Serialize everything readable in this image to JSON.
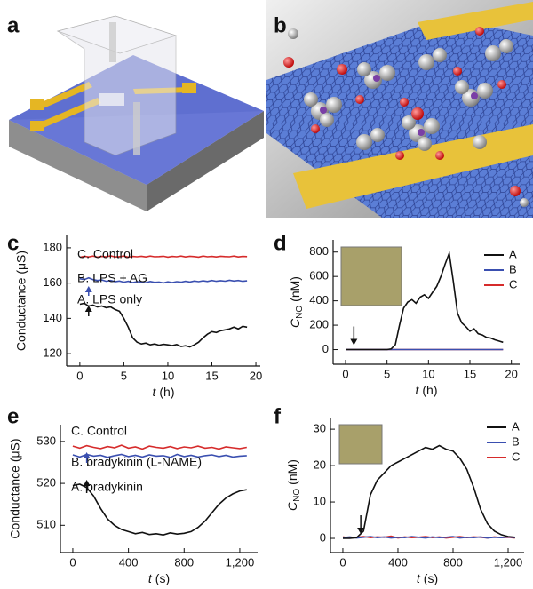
{
  "illustrations": [
    {
      "panel_label": "a"
    },
    {
      "panel_label": "b"
    }
  ],
  "chart_data": [
    {
      "type": "line",
      "panel_label": "c",
      "ylabel": "Conductance (μS)",
      "xlabel_parts": [
        "t",
        "(h)"
      ],
      "x": [
        0,
        0.5,
        1,
        1.5,
        2,
        2.5,
        3,
        3.5,
        4,
        4.5,
        5,
        5.5,
        6,
        6.5,
        7,
        7.5,
        8,
        8.5,
        9,
        9.5,
        10,
        10.5,
        11,
        11.5,
        12,
        12.5,
        13,
        13.5,
        14,
        14.5,
        15,
        15.5,
        16,
        16.5,
        17,
        17.5,
        18,
        18.5,
        19
      ],
      "series": [
        {
          "name": "A. LPS only",
          "color": "#111111",
          "values": [
            148,
            148.5,
            147,
            147.5,
            146.5,
            147,
            146,
            146.5,
            145,
            144,
            140,
            135,
            129,
            126.5,
            125.5,
            126,
            125,
            125.5,
            124.8,
            125.3,
            125,
            124.6,
            125.2,
            124,
            124.5,
            123.8,
            125,
            126.5,
            129,
            131,
            132.5,
            132,
            133,
            133.5,
            134,
            135,
            134,
            135.5,
            135
          ]
        },
        {
          "name": "B. LPS + AG",
          "color": "#3a4fb0",
          "values": [
            162.5,
            162,
            163,
            162,
            161.5,
            161.8,
            161,
            161.5,
            160.8,
            161.2,
            160.5,
            161,
            160.3,
            160.8,
            160.5,
            160.2,
            160.9,
            160.4,
            160.6,
            160.1,
            160.7,
            160.3,
            160.8,
            160.5,
            161,
            160.6,
            161.2,
            160.8,
            161.3,
            160.9,
            161.5,
            161,
            161.4,
            161.1,
            161.6,
            161.2,
            161.5,
            161,
            161.3
          ]
        },
        {
          "name": "C. Control",
          "color": "#d62b2b",
          "values": [
            174.6,
            175.2,
            174.8,
            175.3,
            174.7,
            175.1,
            174.9,
            175.4,
            174.8,
            175,
            175.3,
            174.7,
            175.1,
            174.9,
            175.2,
            174.8,
            175.3,
            174.9,
            175,
            175.2,
            174.7,
            175.1,
            174.9,
            175.3,
            174.8,
            175.2,
            175,
            174.7,
            175.3,
            174.9,
            175.1,
            174.8,
            175.2,
            175,
            174.9,
            175.3,
            174.8,
            175.1,
            175
          ]
        }
      ],
      "marker_x": 1,
      "xlim": [
        -1.5,
        20.5
      ],
      "ylim": [
        113,
        187
      ],
      "xticks": [
        0,
        5,
        10,
        15,
        20
      ],
      "yticks": [
        120,
        140,
        160,
        180
      ]
    },
    {
      "type": "line",
      "panel_label": "d",
      "ylabel_parts": [
        "C",
        "NO",
        "(nM)"
      ],
      "xlabel_parts": [
        "t",
        "(h)"
      ],
      "x": [
        0,
        0.5,
        1,
        1.5,
        2,
        2.5,
        3,
        3.5,
        4,
        4.5,
        5,
        5.5,
        6,
        6.5,
        7,
        7.5,
        8,
        8.5,
        9,
        9.5,
        10,
        10.5,
        11,
        11.5,
        12,
        12.5,
        13,
        13.5,
        14,
        14.5,
        15,
        15.5,
        16,
        16.5,
        17,
        17.5,
        18,
        18.5,
        19
      ],
      "series": [
        {
          "name": "A",
          "color": "#111111",
          "values": [
            0,
            0,
            0,
            0,
            0,
            0,
            0,
            0,
            0,
            0,
            0,
            5,
            40,
            200,
            340,
            390,
            410,
            380,
            430,
            450,
            420,
            470,
            520,
            600,
            700,
            790,
            560,
            300,
            220,
            190,
            150,
            170,
            130,
            120,
            100,
            95,
            80,
            70,
            60
          ]
        },
        {
          "name": "B",
          "color": "#3a4fb0",
          "values": [
            0,
            0,
            0,
            0,
            0,
            0,
            0,
            0,
            0,
            0,
            0,
            0,
            0,
            0,
            0,
            0,
            0,
            0,
            0,
            0,
            0,
            0,
            0,
            0,
            0,
            0,
            0,
            0,
            0,
            0,
            0,
            0,
            0,
            0,
            0,
            0,
            0,
            0,
            0
          ]
        },
        {
          "name": "C",
          "color": "#d62b2b",
          "values": [
            0,
            0,
            0,
            0,
            0,
            0,
            0,
            0,
            0,
            0,
            0,
            0,
            0,
            0,
            0,
            0,
            0,
            0,
            0,
            0,
            0,
            0,
            0,
            0,
            0,
            0,
            0,
            0,
            0,
            0,
            0,
            0,
            0,
            0,
            0,
            0,
            0,
            0,
            0
          ]
        }
      ],
      "marker_x": 1,
      "legend": "upper right",
      "xlim": [
        -1.5,
        21
      ],
      "ylim": [
        -120,
        900
      ],
      "xticks": [
        0,
        5,
        10,
        15,
        20
      ],
      "yticks": [
        0,
        200,
        400,
        600,
        800
      ]
    },
    {
      "type": "line",
      "panel_label": "e",
      "ylabel": "Conductance (μS)",
      "xlabel_parts": [
        "t",
        "(s)"
      ],
      "x": [
        0,
        50,
        100,
        150,
        200,
        250,
        300,
        350,
        400,
        450,
        500,
        550,
        600,
        650,
        700,
        750,
        800,
        850,
        900,
        950,
        1000,
        1050,
        1100,
        1150,
        1200,
        1250
      ],
      "series": [
        {
          "name": "A. bradykinin",
          "color": "#111111",
          "values": [
            519.5,
            519.8,
            519,
            517,
            514,
            511.5,
            510,
            509,
            508.5,
            508,
            508.3,
            507.8,
            508,
            507.7,
            508.2,
            507.9,
            508.1,
            508.5,
            509.5,
            511,
            513,
            515,
            516.5,
            517.5,
            518.2,
            518.5
          ]
        },
        {
          "name": "B. bradykinin (L-NAME)",
          "color": "#3a4fb0",
          "values": [
            526.8,
            526.3,
            526.9,
            526.5,
            526.7,
            526.2,
            526.6,
            526.9,
            526.4,
            526.7,
            526.3,
            526.8,
            526.5,
            526.6,
            526.2,
            526.9,
            526.4,
            526.7,
            526.3,
            526.6,
            526.8,
            526.4,
            526.7,
            526.3,
            526.5,
            526.6
          ]
        },
        {
          "name": "C. Control",
          "color": "#d62b2b",
          "values": [
            528.9,
            528.4,
            529,
            528.6,
            528.3,
            528.8,
            528.5,
            529.1,
            528.4,
            528.7,
            528.2,
            528.9,
            528.6,
            528.4,
            528.8,
            528.3,
            528.7,
            528.5,
            528.9,
            528.4,
            528.6,
            528.2,
            528.7,
            528.5,
            528.3,
            528.6
          ]
        }
      ],
      "marker_x": 100,
      "xlim": [
        -89,
        1328
      ],
      "ylim": [
        503.5,
        534
      ],
      "xticks": [
        0,
        400,
        800,
        {
          "value": 1200,
          "label": "1,200"
        }
      ],
      "yticks": [
        510,
        520,
        530
      ]
    },
    {
      "type": "line",
      "panel_label": "f",
      "ylabel_parts": [
        "C",
        "NO",
        "(nM)"
      ],
      "xlabel_parts": [
        "t",
        "(s)"
      ],
      "x": [
        0,
        50,
        100,
        150,
        200,
        250,
        300,
        350,
        400,
        450,
        500,
        550,
        600,
        650,
        700,
        750,
        800,
        850,
        900,
        950,
        1000,
        1050,
        1100,
        1150,
        1200,
        1250
      ],
      "series": [
        {
          "name": "A",
          "color": "#111111",
          "values": [
            0,
            0,
            0.2,
            2,
            12,
            16,
            18,
            20,
            21,
            22,
            23,
            24,
            25,
            24.5,
            25.5,
            24.5,
            24,
            22,
            19,
            14,
            8,
            4,
            2,
            1,
            0.5,
            0.3
          ]
        },
        {
          "name": "B",
          "color": "#3a4fb0",
          "values": [
            0.2,
            0.4,
            0.1,
            0.3,
            0.5,
            0.2,
            0.4,
            0.1,
            0.3,
            0.2,
            0.5,
            0.3,
            0.1,
            0.4,
            0.2,
            0.3,
            0.5,
            0.1,
            0.3,
            0.2,
            0.4,
            0.1,
            0.3,
            0.2,
            0.4,
            0.2
          ]
        },
        {
          "name": "C",
          "color": "#d62b2b",
          "values": [
            0.4,
            0.1,
            0.3,
            0.5,
            0.2,
            0.4,
            0.3,
            0.6,
            0.1,
            0.4,
            0.2,
            0.3,
            0.5,
            0.2,
            0.4,
            0.1,
            0.3,
            0.5,
            0.2,
            0.4,
            0.3,
            0.1,
            0.4,
            0.2,
            0.3,
            0.1
          ]
        }
      ],
      "marker_x": 130,
      "legend": "upper right",
      "xlim": [
        -90,
        1316
      ],
      "ylim": [
        -3.9,
        33.2
      ],
      "xticks": [
        0,
        400,
        800,
        {
          "value": 1200,
          "label": "1,200"
        }
      ],
      "yticks": [
        0,
        10,
        20,
        30
      ]
    }
  ]
}
